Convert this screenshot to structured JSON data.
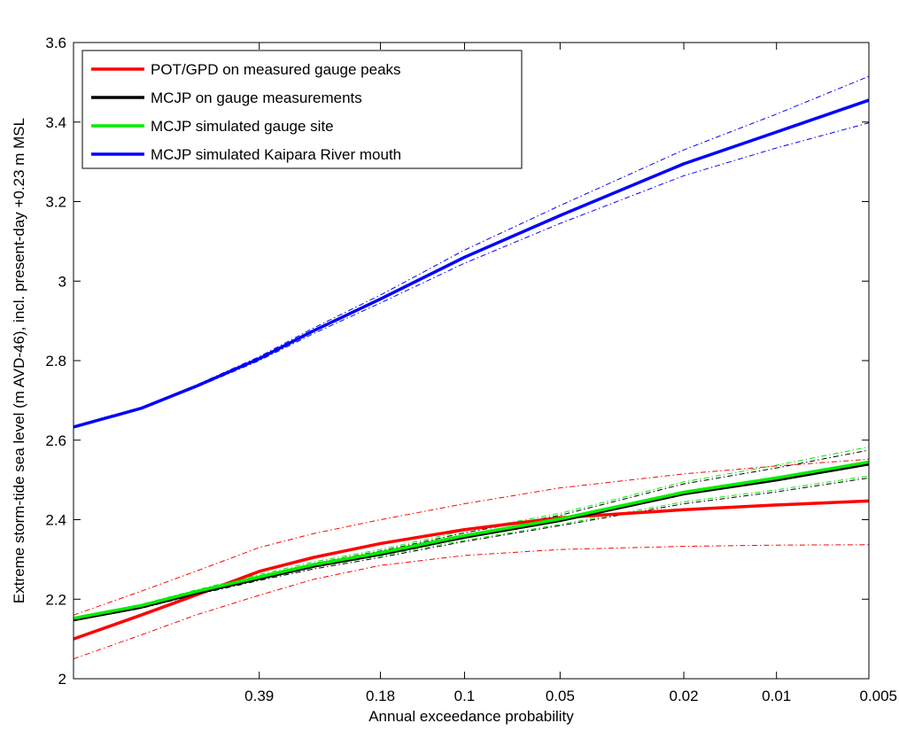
{
  "chart_data": {
    "type": "line",
    "title": "",
    "xlabel": "Annual exceedance probability",
    "ylabel": "Extreme storm-tide sea level (m AVD-46), incl. present-day +0.23 m MSL",
    "x_scale": "log(-log(1-AEP))",
    "x_ticks": [
      "0.39",
      "0.18",
      "0.1",
      "0.05",
      "0.02",
      "0.01",
      "0.005"
    ],
    "xlim": [
      0.865,
      0.005
    ],
    "ylim": [
      2,
      3.6
    ],
    "y_ticks": [
      "2",
      "2.2",
      "2.4",
      "2.6",
      "2.8",
      "3",
      "3.2",
      "3.4",
      "3.6"
    ],
    "grid": false,
    "legend_position": "top-left",
    "series": [
      {
        "name": "POT/GPD on measured gauge peaks",
        "color": "#ff0000",
        "x": [
          0.865,
          0.7,
          0.55,
          0.39,
          0.28,
          0.18,
          0.1,
          0.05,
          0.02,
          0.01,
          0.005
        ],
        "values": [
          2.1,
          2.16,
          2.21,
          2.27,
          2.305,
          2.34,
          2.375,
          2.405,
          2.425,
          2.437,
          2.447
        ],
        "lower": [
          2.05,
          2.11,
          2.16,
          2.21,
          2.25,
          2.285,
          2.31,
          2.325,
          2.333,
          2.336,
          2.337
        ],
        "upper": [
          2.16,
          2.22,
          2.27,
          2.33,
          2.365,
          2.4,
          2.44,
          2.48,
          2.515,
          2.535,
          2.552
        ]
      },
      {
        "name": "MCJP on gauge measurements",
        "color": "#000000",
        "x": [
          0.865,
          0.7,
          0.55,
          0.39,
          0.28,
          0.18,
          0.1,
          0.05,
          0.02,
          0.01,
          0.005
        ],
        "values": [
          2.148,
          2.18,
          2.215,
          2.252,
          2.283,
          2.313,
          2.356,
          2.398,
          2.465,
          2.5,
          2.54
        ],
        "lower": [
          2.146,
          2.177,
          2.211,
          2.247,
          2.276,
          2.305,
          2.345,
          2.385,
          2.44,
          2.47,
          2.505
        ],
        "upper": [
          2.15,
          2.183,
          2.219,
          2.257,
          2.29,
          2.321,
          2.367,
          2.411,
          2.49,
          2.53,
          2.575
        ]
      },
      {
        "name": "MCJP simulated gauge site",
        "color": "#00ee00",
        "x": [
          0.865,
          0.7,
          0.55,
          0.39,
          0.28,
          0.18,
          0.1,
          0.05,
          0.02,
          0.01,
          0.005
        ],
        "values": [
          2.152,
          2.184,
          2.219,
          2.256,
          2.287,
          2.317,
          2.36,
          2.402,
          2.469,
          2.505,
          2.545
        ],
        "lower": [
          2.15,
          2.181,
          2.215,
          2.25,
          2.28,
          2.309,
          2.348,
          2.388,
          2.445,
          2.475,
          2.51
        ],
        "upper": [
          2.154,
          2.187,
          2.223,
          2.262,
          2.294,
          2.325,
          2.372,
          2.416,
          2.495,
          2.537,
          2.583
        ]
      },
      {
        "name": "MCJP simulated Kaipara River mouth",
        "color": "#0000ff",
        "x": [
          0.865,
          0.7,
          0.55,
          0.39,
          0.28,
          0.18,
          0.1,
          0.05,
          0.02,
          0.01,
          0.005
        ],
        "values": [
          2.633,
          2.68,
          2.735,
          2.805,
          2.875,
          2.955,
          3.06,
          3.165,
          3.295,
          3.375,
          3.455
        ],
        "lower": [
          2.632,
          2.678,
          2.732,
          2.8,
          2.868,
          2.945,
          3.045,
          3.145,
          3.265,
          3.335,
          3.398
        ],
        "upper": [
          2.634,
          2.682,
          2.738,
          2.81,
          2.882,
          2.965,
          3.078,
          3.19,
          3.33,
          3.42,
          3.515
        ]
      }
    ]
  }
}
